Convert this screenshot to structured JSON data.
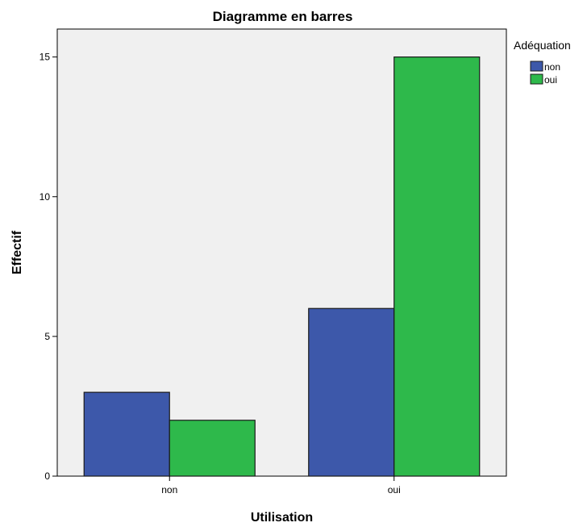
{
  "chart_data": {
    "type": "bar",
    "title": "Diagramme en barres",
    "xlabel": "Utilisation",
    "ylabel": "Effectif",
    "categories": [
      "non",
      "oui"
    ],
    "series": [
      {
        "name": "non",
        "values": [
          3,
          6
        ]
      },
      {
        "name": "oui",
        "values": [
          2,
          15
        ]
      }
    ],
    "ylim": [
      0,
      16
    ],
    "yticks": [
      0,
      5,
      10,
      15
    ],
    "grid": false,
    "legend": {
      "title": "Adéquation",
      "position": "top-right"
    }
  },
  "colors": {
    "plot_background": "#f0f0f0",
    "series": [
      "#3d58aa",
      "#2eb94b"
    ],
    "bar_stroke": "#1a1a1a",
    "axis": "#000000"
  }
}
